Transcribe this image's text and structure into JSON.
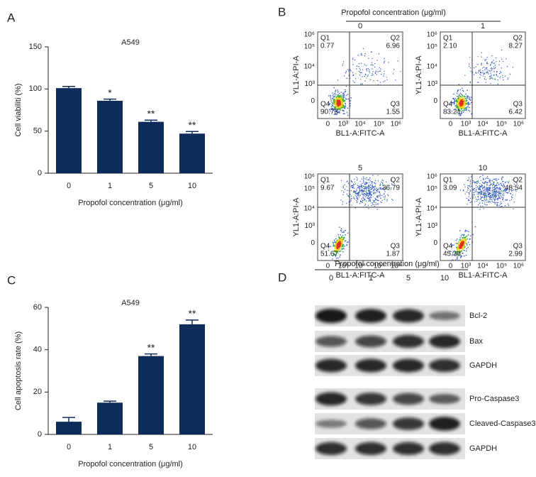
{
  "panel_labels": [
    "A",
    "B",
    "C",
    "D"
  ],
  "chart_data": [
    {
      "type": "bar",
      "title": "A549",
      "xlabel": "Propofol concentration (μg/ml)",
      "ylabel": "Cell viabiliti (%)",
      "categories": [
        "0",
        "1",
        "5",
        "10"
      ],
      "values": [
        101,
        86,
        61,
        47
      ],
      "errors": [
        2,
        2,
        2,
        2.5
      ],
      "annotations": [
        null,
        "*",
        "**",
        "**"
      ],
      "color": "#0d2c5a",
      "ylim": [
        0,
        150
      ],
      "yticks": [
        0,
        50,
        100,
        150
      ]
    },
    {
      "type": "bar",
      "title": "A549",
      "xlabel": "Propofol concentration (μg/ml)",
      "ylabel": "Cell apoptosis rate (%)",
      "categories": [
        "0",
        "1",
        "5",
        "10"
      ],
      "values": [
        6,
        15,
        37,
        52
      ],
      "errors": [
        2,
        0.7,
        1,
        2
      ],
      "annotations": [
        null,
        null,
        "**",
        "**"
      ],
      "color": "#0d2c5a",
      "ylim": [
        0,
        60
      ],
      "yticks": [
        0,
        20,
        40,
        60
      ]
    }
  ],
  "flow": {
    "header": "Propofol concentration (μg/ml)",
    "ylabel": "YL1-A:PI-A",
    "xlabel": "BL1-A:FITC-A",
    "yticks": [
      "10⁶",
      "10⁵",
      "10⁴",
      "10³",
      "0"
    ],
    "xticks": [
      "0",
      "10³",
      "10⁴",
      "10⁵",
      "10⁶"
    ],
    "quadrant_names": [
      "Q1",
      "Q2",
      "Q3",
      "Q4"
    ],
    "plots": [
      {
        "condition": "0",
        "quadrants": [
          "0.77",
          "6.96",
          "1.55",
          "90.73"
        ]
      },
      {
        "condition": "1",
        "quadrants": [
          "2.10",
          "8.27",
          "6.42",
          "83.21"
        ]
      },
      {
        "condition": "5",
        "quadrants": [
          "9.67",
          "36.79",
          "1.87",
          "51.67"
        ]
      },
      {
        "condition": "10",
        "quadrants": [
          "3.09",
          "48.54",
          "2.99",
          "45.38"
        ]
      }
    ]
  },
  "blot": {
    "header": "Propofol concentration (μg/ml)",
    "lanes": [
      "0",
      "1",
      "5",
      "10"
    ],
    "bands": [
      "Bcl-2",
      "Bax",
      "GAPDH",
      "Pro-Caspase3",
      "Cleaved-Caspase3",
      "GAPDH"
    ]
  }
}
